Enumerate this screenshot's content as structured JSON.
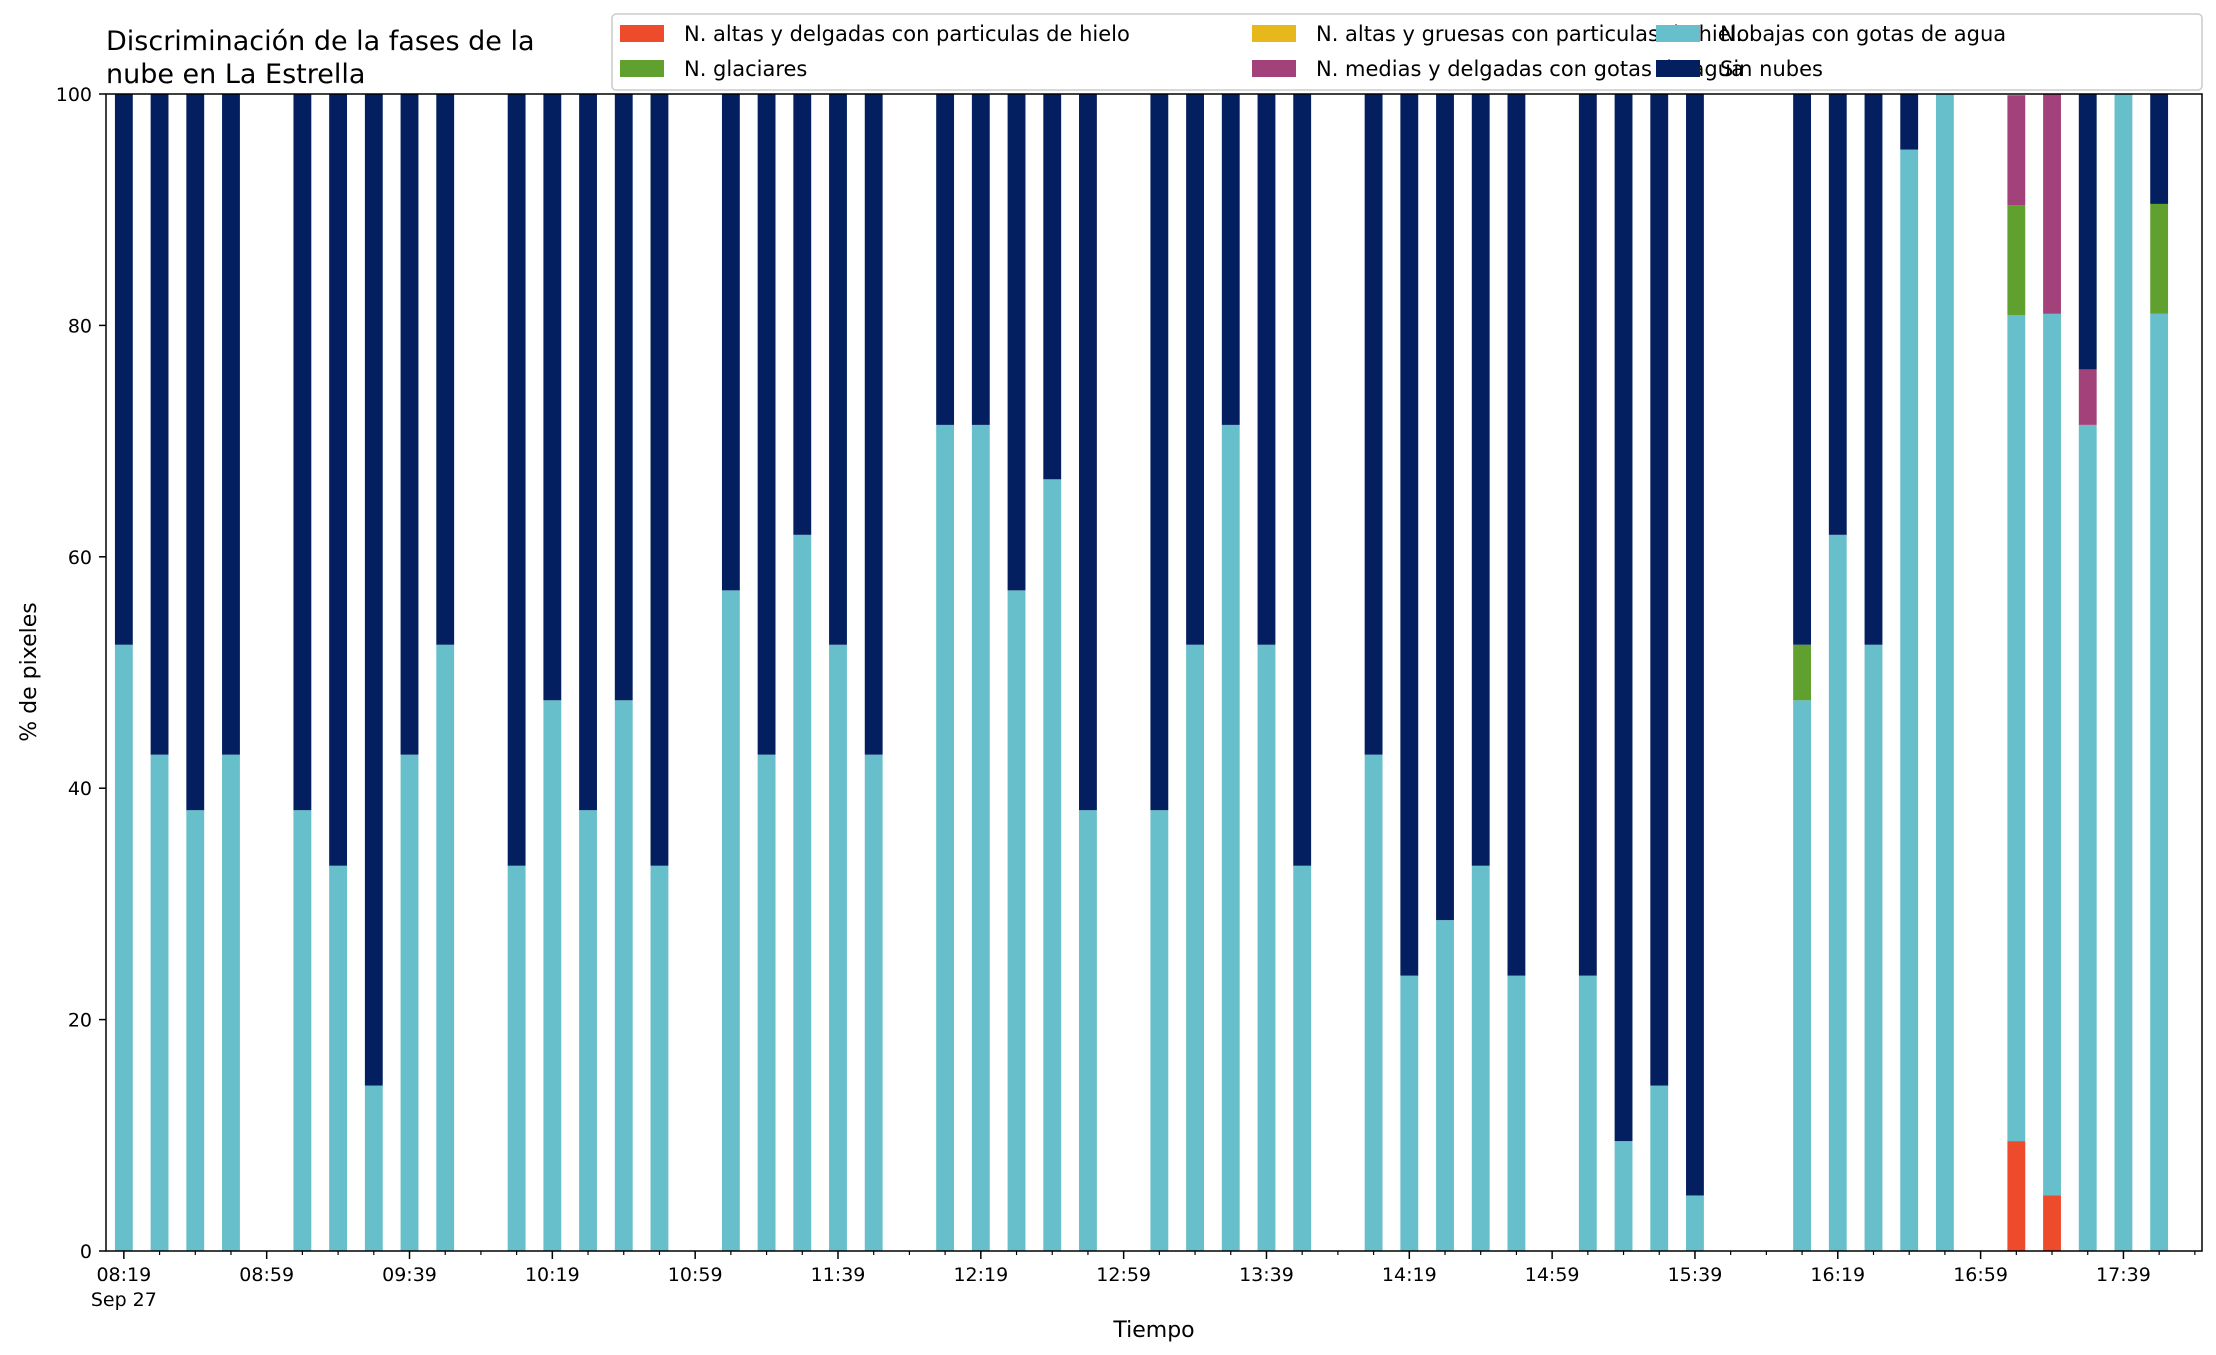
{
  "chart_data": {
    "type": "bar",
    "stacked": true,
    "title_lines": [
      "Discriminación de la fases de la",
      "nube en La Estrella"
    ],
    "xlabel": "Tiempo",
    "ylabel": "% de pixeles",
    "ylim": [
      0,
      100
    ],
    "y_ticks": [
      0,
      20,
      40,
      60,
      80,
      100
    ],
    "x_range": [
      "08:14",
      "18:01"
    ],
    "x_tick_labels": [
      "08:19",
      "08:59",
      "09:39",
      "10:19",
      "10:59",
      "11:39",
      "12:19",
      "12:59",
      "13:39",
      "14:19",
      "14:59",
      "15:39",
      "16:19",
      "16:59",
      "17:39"
    ],
    "x_date_label": "Sep 27",
    "grid": false,
    "legend_position": "top",
    "legend_columns": 3,
    "bar_interval_minutes": 10,
    "times": [
      "08:19",
      "08:29",
      "08:39",
      "08:49",
      "08:59",
      "09:09",
      "09:19",
      "09:29",
      "09:39",
      "09:49",
      "09:59",
      "10:09",
      "10:19",
      "10:29",
      "10:39",
      "10:49",
      "10:59",
      "11:09",
      "11:19",
      "11:29",
      "11:39",
      "11:49",
      "11:59",
      "12:09",
      "12:19",
      "12:29",
      "12:39",
      "12:49",
      "12:59",
      "13:09",
      "13:19",
      "13:29",
      "13:39",
      "13:49",
      "13:59",
      "14:09",
      "14:19",
      "14:29",
      "14:39",
      "14:49",
      "14:59",
      "15:09",
      "15:19",
      "15:29",
      "15:39",
      "15:49",
      "15:59",
      "16:09",
      "16:19",
      "16:29",
      "16:39",
      "16:49",
      "16:59",
      "17:09",
      "17:19",
      "17:29",
      "17:39",
      "17:49"
    ],
    "series": [
      {
        "name": "N. altas y delgadas con particulas de hielo",
        "color": "#ee4a2c",
        "values": [
          0,
          0,
          0,
          0,
          null,
          0,
          0,
          0,
          0,
          0,
          null,
          0,
          0,
          0,
          0,
          0,
          null,
          0,
          0,
          0,
          0,
          0,
          null,
          0,
          0,
          0,
          0,
          0,
          null,
          0,
          0,
          0,
          0,
          0,
          null,
          0,
          0,
          0,
          0,
          0,
          null,
          0,
          0,
          0,
          0,
          null,
          null,
          0,
          0,
          0,
          0,
          0,
          null,
          9.5,
          4.8,
          0,
          0,
          0
        ]
      },
      {
        "name": "N. altas y gruesas con particulas de hielo",
        "color": "#e6b81c",
        "values": [
          0,
          0,
          0,
          0,
          null,
          0,
          0,
          0,
          0,
          0,
          null,
          0,
          0,
          0,
          0,
          0,
          null,
          0,
          0,
          0,
          0,
          0,
          null,
          0,
          0,
          0,
          0,
          0,
          null,
          0,
          0,
          0,
          0,
          0,
          null,
          0,
          0,
          0,
          0,
          0,
          null,
          0,
          0,
          0,
          0,
          null,
          null,
          0,
          0,
          0,
          0,
          0,
          null,
          0,
          0,
          0,
          0,
          0
        ]
      },
      {
        "name": "N. bajas con gotas de agua",
        "color": "#66bfca",
        "values": [
          52.4,
          42.9,
          38.1,
          42.9,
          null,
          38.1,
          33.3,
          14.3,
          42.9,
          52.4,
          null,
          33.3,
          47.6,
          38.1,
          47.6,
          33.3,
          null,
          57.1,
          42.9,
          61.9,
          52.4,
          42.9,
          null,
          71.4,
          71.4,
          57.1,
          66.7,
          38.1,
          null,
          38.1,
          52.4,
          71.4,
          52.4,
          33.3,
          null,
          42.9,
          23.8,
          28.6,
          33.3,
          23.8,
          null,
          23.8,
          9.5,
          14.3,
          4.8,
          null,
          null,
          47.6,
          61.9,
          52.4,
          95.2,
          100,
          null,
          71.4,
          76.2,
          71.4,
          100,
          81.0
        ]
      },
      {
        "name": "N. glaciares",
        "color": "#5fa02e",
        "values": [
          0,
          0,
          0,
          0,
          null,
          0,
          0,
          0,
          0,
          0,
          null,
          0,
          0,
          0,
          0,
          0,
          null,
          0,
          0,
          0,
          0,
          0,
          null,
          0,
          0,
          0,
          0,
          0,
          null,
          0,
          0,
          0,
          0,
          0,
          null,
          0,
          0,
          0,
          0,
          0,
          null,
          0,
          0,
          0,
          0,
          null,
          null,
          4.8,
          0,
          0,
          0,
          0,
          null,
          9.5,
          0,
          0,
          0,
          9.5
        ]
      },
      {
        "name": "N. medias y delgadas con gotas de agua",
        "color": "#a3427a",
        "values": [
          0,
          0,
          0,
          0,
          null,
          0,
          0,
          0,
          0,
          0,
          null,
          0,
          0,
          0,
          0,
          0,
          null,
          0,
          0,
          0,
          0,
          0,
          null,
          0,
          0,
          0,
          0,
          0,
          null,
          0,
          0,
          0,
          0,
          0,
          null,
          0,
          0,
          0,
          0,
          0,
          null,
          0,
          0,
          0,
          0,
          null,
          null,
          0,
          0,
          0,
          0,
          0,
          null,
          9.5,
          19.0,
          4.8,
          0,
          0
        ]
      },
      {
        "name": "Sin nubes",
        "color": "#031f5f",
        "values": [
          47.6,
          57.1,
          61.9,
          57.1,
          null,
          61.9,
          66.7,
          85.7,
          57.1,
          47.6,
          null,
          66.7,
          52.4,
          61.9,
          52.4,
          66.7,
          null,
          42.9,
          57.1,
          38.1,
          47.6,
          57.1,
          null,
          28.6,
          28.6,
          42.9,
          33.3,
          61.9,
          null,
          61.9,
          47.6,
          28.6,
          47.6,
          66.7,
          null,
          57.1,
          76.2,
          71.4,
          66.7,
          76.2,
          null,
          76.2,
          90.5,
          85.7,
          95.2,
          null,
          null,
          47.6,
          38.1,
          47.6,
          4.8,
          0,
          null,
          0,
          0,
          23.8,
          0,
          9.5
        ]
      }
    ]
  }
}
